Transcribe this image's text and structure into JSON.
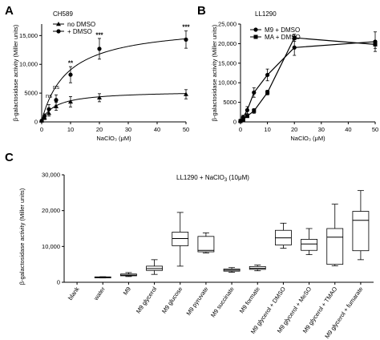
{
  "panels": {
    "a": {
      "letter": "A",
      "strain": "CH589"
    },
    "b": {
      "letter": "B",
      "strain": "LL1290"
    },
    "c": {
      "letter": "C",
      "condition": "LL1290 + NaClO",
      "condition_sub": "3",
      "condition_tail": " (10μM)"
    }
  },
  "colors": {
    "line": "#000000",
    "box": "#000000",
    "background": "#ffffff"
  },
  "chart_data": [
    {
      "id": "A",
      "type": "line",
      "title": "CH589",
      "xlabel": "NaClO₃ (μM)",
      "ylabel": "β-galactosidase activity (Miller units)",
      "xlim": [
        0,
        50
      ],
      "ylim": [
        0,
        17000
      ],
      "xticks": [
        0,
        10,
        20,
        30,
        40,
        50
      ],
      "yticks": [
        0,
        5000,
        10000,
        15000
      ],
      "ytick_labels": [
        "0",
        "5000",
        "10,000",
        "15,000"
      ],
      "legend_position": "top-left",
      "series": [
        {
          "name": "no DMSO",
          "marker": "triangle",
          "x": [
            0,
            1,
            2.5,
            5,
            10,
            20,
            50
          ],
          "y": [
            200,
            700,
            1500,
            2700,
            3500,
            4200,
            4800
          ],
          "err": [
            100,
            300,
            500,
            700,
            900,
            700,
            800
          ],
          "fit": {
            "vmax": 5200,
            "k": 5
          }
        },
        {
          "name": "+ DMSO",
          "marker": "circle",
          "x": [
            0,
            1,
            2.5,
            5,
            10,
            20,
            50
          ],
          "y": [
            200,
            1000,
            2200,
            3800,
            8200,
            12700,
            14300
          ],
          "err": [
            100,
            400,
            800,
            900,
            1400,
            1800,
            1500
          ],
          "fit": {
            "vmax": 16800,
            "k": 9
          }
        }
      ],
      "annotations": [
        {
          "text": "ns",
          "x": 2.5,
          "y": 4200
        },
        {
          "text": "ns",
          "x": 5,
          "y": 5700
        },
        {
          "text": "**",
          "x": 10,
          "y": 9800
        },
        {
          "text": "***",
          "x": 20,
          "y": 14700
        },
        {
          "text": "***",
          "x": 50,
          "y": 16100
        }
      ]
    },
    {
      "id": "B",
      "type": "line",
      "title": "LL1290",
      "xlabel": "NaClO₃ (μM)",
      "ylabel": "β-galactosidase activity (Miller units)",
      "xlim": [
        0,
        50
      ],
      "ylim": [
        0,
        25000
      ],
      "xticks": [
        0,
        10,
        20,
        30,
        40,
        50
      ],
      "yticks": [
        0,
        5000,
        10000,
        15000,
        20000,
        25000
      ],
      "ytick_labels": [
        "0",
        "5000",
        "10,000",
        "15,000",
        "20,000",
        "25,000"
      ],
      "legend_position": "top-left",
      "series": [
        {
          "name": "M9 + DMSO",
          "marker": "circle",
          "x": [
            0,
            1,
            2.5,
            5,
            10,
            20,
            50
          ],
          "y": [
            300,
            1200,
            3000,
            7500,
            12000,
            19000,
            20500
          ],
          "err": [
            200,
            500,
            900,
            1200,
            1500,
            2000,
            2500
          ]
        },
        {
          "name": "MA + DMSO",
          "marker": "square",
          "x": [
            0,
            1,
            2.5,
            5,
            10,
            20,
            50
          ],
          "y": [
            200,
            600,
            1500,
            2800,
            7500,
            21500,
            19800
          ],
          "err": [
            100,
            200,
            400,
            600,
            600,
            900,
            1000
          ]
        }
      ]
    },
    {
      "id": "C",
      "type": "box",
      "title": "LL1290 + NaClO₃ (10μM)",
      "ylabel": "β-galactosidase activity (Miller units)",
      "ylim": [
        0,
        30000
      ],
      "yticks": [
        0,
        10000,
        20000,
        30000
      ],
      "ytick_labels": [
        "0",
        "10,000",
        "20,000",
        "30,000"
      ],
      "categories": [
        "blank",
        "water",
        "M9",
        "M9 glycerol",
        "M9 glucose",
        "M9 pyruvate",
        "M9 succinate",
        "M9 formate",
        "M9 glycerol + DMSO",
        "M9 glycerol + MeSO",
        "M9 glycerol + TMAO",
        "M9 glycerol + fumarate"
      ],
      "boxes": [
        {
          "min": 0,
          "q1": 0,
          "median": 0,
          "q3": 0,
          "max": 0
        },
        {
          "min": 1200,
          "q1": 1300,
          "median": 1400,
          "q3": 1500,
          "max": 1550
        },
        {
          "min": 1600,
          "q1": 1800,
          "median": 2000,
          "q3": 2300,
          "max": 2700
        },
        {
          "min": 2200,
          "q1": 3300,
          "median": 3800,
          "q3": 4500,
          "max": 6300
        },
        {
          "min": 4500,
          "q1": 10200,
          "median": 12200,
          "q3": 14000,
          "max": 19500
        },
        {
          "min": 8200,
          "q1": 8500,
          "median": 8900,
          "q3": 12800,
          "max": 13800
        },
        {
          "min": 2800,
          "q1": 3100,
          "median": 3400,
          "q3": 3700,
          "max": 4100
        },
        {
          "min": 3200,
          "q1": 3600,
          "median": 3900,
          "q3": 4400,
          "max": 4800
        },
        {
          "min": 9500,
          "q1": 10400,
          "median": 12400,
          "q3": 14500,
          "max": 16500
        },
        {
          "min": 7700,
          "q1": 8900,
          "median": 10700,
          "q3": 12000,
          "max": 15000
        },
        {
          "min": 4600,
          "q1": 5000,
          "median": 12600,
          "q3": 15000,
          "max": 21800
        },
        {
          "min": 6300,
          "q1": 8800,
          "median": 17300,
          "q3": 19800,
          "max": 25600
        }
      ]
    }
  ]
}
